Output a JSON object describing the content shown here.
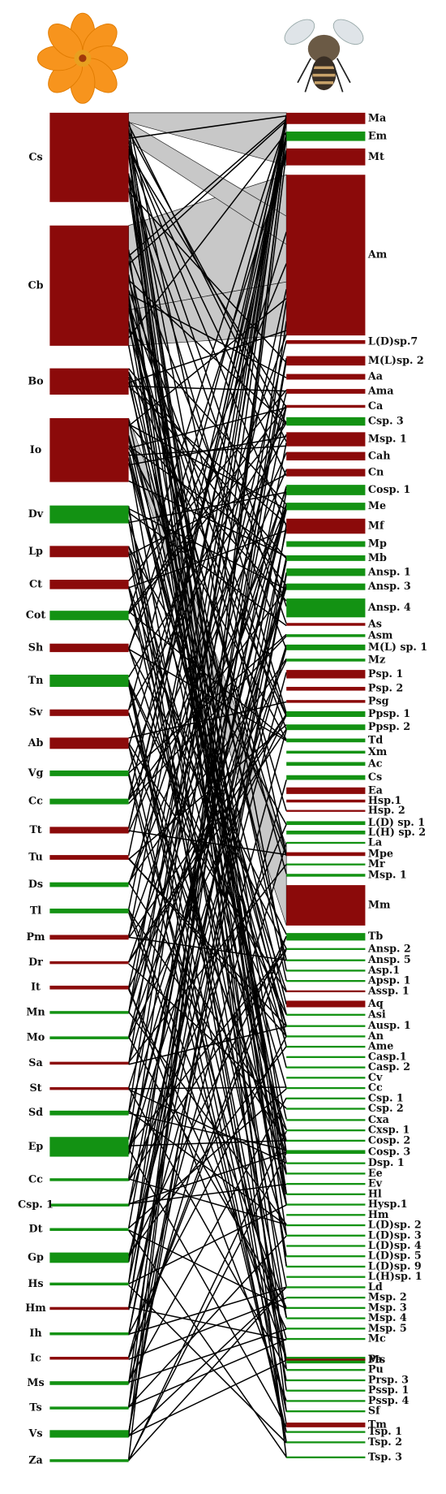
{
  "plants": [
    {
      "label": "Cs",
      "color": "#8b0a0a"
    },
    {
      "label": "Cb",
      "color": "#8b0a0a"
    },
    {
      "label": "Bo",
      "color": "#8b0a0a"
    },
    {
      "label": "Io",
      "color": "#8b0a0a"
    },
    {
      "label": "Dv",
      "color": "#139213"
    },
    {
      "label": "Lp",
      "color": "#8b0a0a"
    },
    {
      "label": "Ct",
      "color": "#8b0a0a"
    },
    {
      "label": "Cot",
      "color": "#139213"
    },
    {
      "label": "Sh",
      "color": "#8b0a0a"
    },
    {
      "label": "Tn",
      "color": "#139213"
    },
    {
      "label": "Sv",
      "color": "#8b0a0a"
    },
    {
      "label": "Ab",
      "color": "#8b0a0a"
    },
    {
      "label": "Vg",
      "color": "#139213"
    },
    {
      "label": "Cc",
      "color": "#139213"
    },
    {
      "label": "Tt",
      "color": "#8b0a0a"
    },
    {
      "label": "Tu",
      "color": "#8b0a0a"
    },
    {
      "label": "Ds",
      "color": "#139213"
    },
    {
      "label": "Tl",
      "color": "#139213"
    },
    {
      "label": "Pm",
      "color": "#8b0a0a"
    },
    {
      "label": "Dr",
      "color": "#8b0a0a"
    },
    {
      "label": "It",
      "color": "#8b0a0a"
    },
    {
      "label": "Mn",
      "color": "#139213"
    },
    {
      "label": "Mo",
      "color": "#139213"
    },
    {
      "label": "Sa",
      "color": "#8b0a0a"
    },
    {
      "label": "St",
      "color": "#8b0a0a"
    },
    {
      "label": "Sd",
      "color": "#139213"
    },
    {
      "label": "Ep",
      "color": "#139213"
    },
    {
      "label": "Cc",
      "color": "#139213"
    },
    {
      "label": "Csp. 1",
      "color": "#139213"
    },
    {
      "label": "Dt",
      "color": "#139213"
    },
    {
      "label": "Gp",
      "color": "#139213"
    },
    {
      "label": "Hs",
      "color": "#139213"
    },
    {
      "label": "Hm",
      "color": "#8b0a0a"
    },
    {
      "label": "Ih",
      "color": "#139213"
    },
    {
      "label": "Ic",
      "color": "#8b0a0a"
    },
    {
      "label": "Ms",
      "color": "#139213"
    },
    {
      "label": "Ts",
      "color": "#139213"
    },
    {
      "label": "Vs",
      "color": "#139213"
    },
    {
      "label": "Za",
      "color": "#139213"
    }
  ],
  "pollinators": [
    {
      "label": "Ma",
      "color": "#8b0a0a"
    },
    {
      "label": "Em",
      "color": "#139213"
    },
    {
      "label": "Mt",
      "color": "#8b0a0a"
    },
    {
      "label": "Am",
      "color": "#8b0a0a"
    },
    {
      "label": "L(D)sp.7",
      "color": "#8b0a0a"
    },
    {
      "label": "M(L)sp. 2",
      "color": "#8b0a0a"
    },
    {
      "label": "Aa",
      "color": "#8b0a0a"
    },
    {
      "label": "Ama",
      "color": "#8b0a0a"
    },
    {
      "label": "Ca",
      "color": "#8b0a0a"
    },
    {
      "label": "Csp. 3",
      "color": "#139213"
    },
    {
      "label": "Msp. 1",
      "color": "#8b0a0a"
    },
    {
      "label": "Cah",
      "color": "#8b0a0a"
    },
    {
      "label": "Cn",
      "color": "#8b0a0a"
    },
    {
      "label": "Cosp. 1",
      "color": "#139213"
    },
    {
      "label": "Me",
      "color": "#139213"
    },
    {
      "label": "Mf",
      "color": "#8b0a0a"
    },
    {
      "label": "Mp",
      "color": "#139213"
    },
    {
      "label": "Mb",
      "color": "#139213"
    },
    {
      "label": "Ansp. 1",
      "color": "#139213"
    },
    {
      "label": "Ansp. 3",
      "color": "#139213"
    },
    {
      "label": "Ansp. 4",
      "color": "#139213"
    },
    {
      "label": "As",
      "color": "#8b0a0a"
    },
    {
      "label": "Asm",
      "color": "#139213"
    },
    {
      "label": "M(L) sp. 1",
      "color": "#139213"
    },
    {
      "label": "Mz",
      "color": "#139213"
    },
    {
      "label": "Psp. 1",
      "color": "#8b0a0a"
    },
    {
      "label": "Psp. 2",
      "color": "#8b0a0a"
    },
    {
      "label": "Psg",
      "color": "#8b0a0a"
    },
    {
      "label": "Ppsp. 1",
      "color": "#139213"
    },
    {
      "label": "Ppsp. 2",
      "color": "#139213"
    },
    {
      "label": "Td",
      "color": "#139213"
    },
    {
      "label": "Xm",
      "color": "#139213"
    },
    {
      "label": "Ac",
      "color": "#139213"
    },
    {
      "label": "Cs",
      "color": "#139213"
    },
    {
      "label": "Ea",
      "color": "#8b0a0a"
    },
    {
      "label": "Hsp.1",
      "color": "#8b0a0a"
    },
    {
      "label": "Hsp. 2",
      "color": "#8b0a0a"
    },
    {
      "label": "L(D) sp. 1",
      "color": "#139213"
    },
    {
      "label": "L(H) sp. 2",
      "color": "#139213"
    },
    {
      "label": "La",
      "color": "#139213"
    },
    {
      "label": "Mpe",
      "color": "#8b0a0a"
    },
    {
      "label": "Mr",
      "color": "#139213"
    },
    {
      "label": "Msp. 1",
      "color": "#139213"
    },
    {
      "label": "Mm",
      "color": "#8b0a0a"
    },
    {
      "label": "Tb",
      "color": "#139213"
    },
    {
      "label": "Ansp. 2",
      "color": "#139213"
    },
    {
      "label": "Ansp. 5",
      "color": "#139213"
    },
    {
      "label": "Asp.1",
      "color": "#139213"
    },
    {
      "label": "Apsp. 1",
      "color": "#139213"
    },
    {
      "label": "Assp. 1",
      "color": "#8b0a0a"
    },
    {
      "label": "Aq",
      "color": "#8b0a0a"
    },
    {
      "label": "Asi",
      "color": "#139213"
    },
    {
      "label": "Ausp. 1",
      "color": "#139213"
    },
    {
      "label": "An",
      "color": "#139213"
    },
    {
      "label": "Ame",
      "color": "#139213"
    },
    {
      "label": "Casp.1",
      "color": "#139213"
    },
    {
      "label": "Casp. 2",
      "color": "#139213"
    },
    {
      "label": "Cv",
      "color": "#139213"
    },
    {
      "label": "Cc",
      "color": "#139213"
    },
    {
      "label": "Csp. 1",
      "color": "#139213"
    },
    {
      "label": "Csp. 2",
      "color": "#139213"
    },
    {
      "label": "Cxa",
      "color": "#139213"
    },
    {
      "label": "Cxsp. 1",
      "color": "#139213"
    },
    {
      "label": "Cosp. 2",
      "color": "#139213"
    },
    {
      "label": "Cosp. 3",
      "color": "#139213"
    },
    {
      "label": "Dsp. 1",
      "color": "#139213"
    },
    {
      "label": "Ee",
      "color": "#139213"
    },
    {
      "label": "Ev",
      "color": "#139213"
    },
    {
      "label": "Hl",
      "color": "#139213"
    },
    {
      "label": "Hysp.1",
      "color": "#139213"
    },
    {
      "label": "Hm",
      "color": "#139213"
    },
    {
      "label": "L(D)sp. 2",
      "color": "#139213"
    },
    {
      "label": "L(D)sp. 3",
      "color": "#139213"
    },
    {
      "label": "L(D)sp. 4",
      "color": "#139213"
    },
    {
      "label": "L(D)sp. 5",
      "color": "#139213"
    },
    {
      "label": "L(D)sp. 9",
      "color": "#139213"
    },
    {
      "label": "L(H)sp. 1",
      "color": "#139213"
    },
    {
      "label": "Ld",
      "color": "#139213"
    },
    {
      "label": "Msp. 2",
      "color": "#139213"
    },
    {
      "label": "Msp. 3",
      "color": "#139213"
    },
    {
      "label": "Msp. 4",
      "color": "#139213"
    },
    {
      "label": "Msp. 5",
      "color": "#139213"
    },
    {
      "label": "Mc",
      "color": "#139213"
    },
    {
      "label": "Ms",
      "color": "#139213"
    },
    {
      "label": "Pa",
      "color": "#8b0a0a"
    },
    {
      "label": "Pu",
      "color": "#139213"
    },
    {
      "label": "Prsp. 3",
      "color": "#139213"
    },
    {
      "label": "Pssp. 1",
      "color": "#139213"
    },
    {
      "label": "Pssp. 4",
      "color": "#139213"
    },
    {
      "label": "Sf",
      "color": "#139213"
    },
    {
      "label": "Tm",
      "color": "#8b0a0a"
    },
    {
      "label": "Tsp. 1",
      "color": "#139213"
    },
    {
      "label": "Tsp. 2",
      "color": "#139213"
    },
    {
      "label": "Tsp. 3",
      "color": "#139213"
    }
  ]
}
